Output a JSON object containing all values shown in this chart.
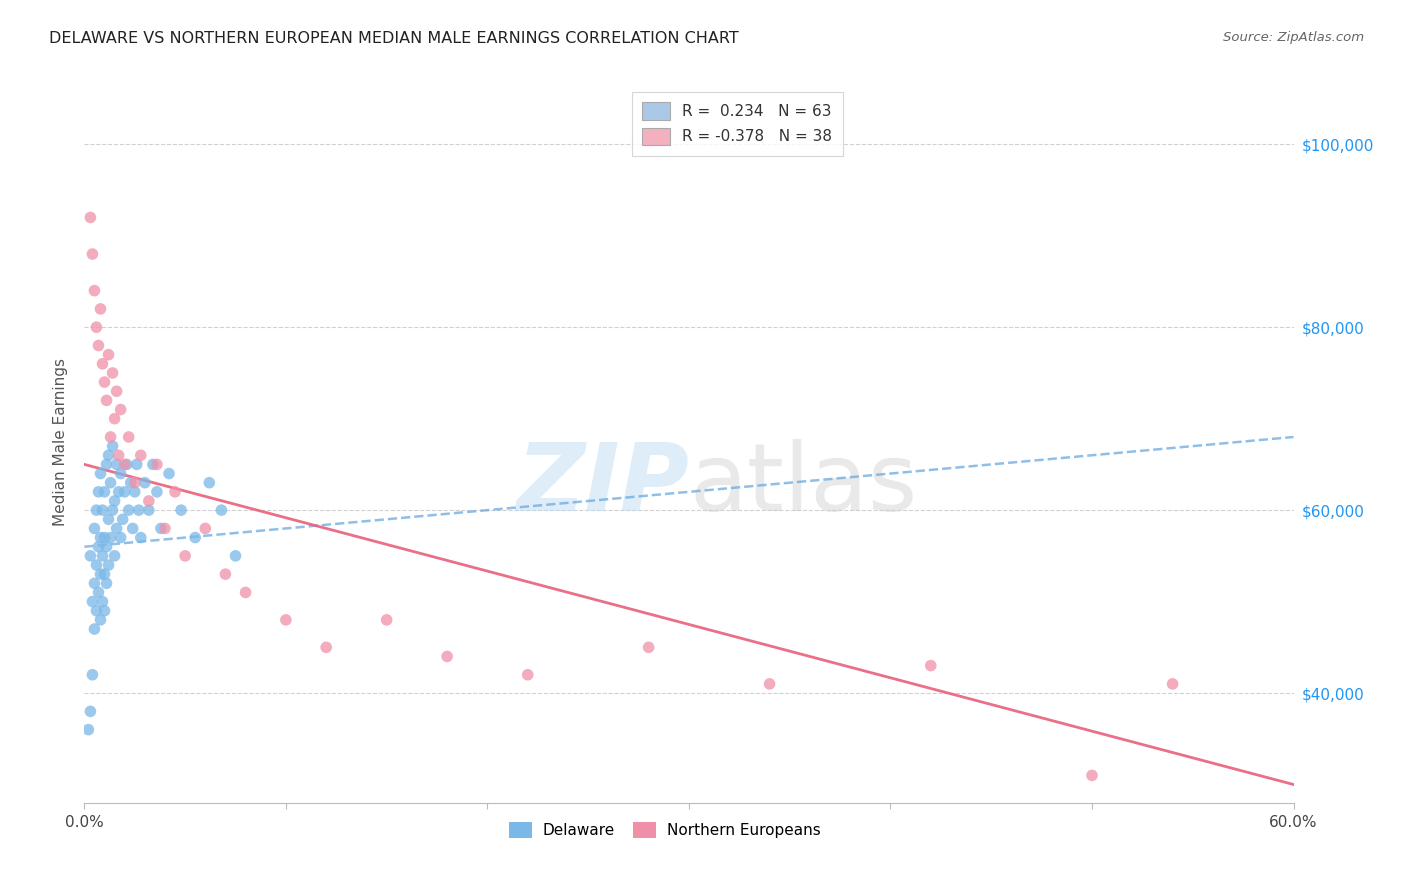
{
  "title": "DELAWARE VS NORTHERN EUROPEAN MEDIAN MALE EARNINGS CORRELATION CHART",
  "source": "Source: ZipAtlas.com",
  "ylabel": "Median Male Earnings",
  "xlim_pct": [
    0.0,
    0.6
  ],
  "ylim": [
    28000,
    107000
  ],
  "ytick_labels": [
    "$40,000",
    "$60,000",
    "$80,000",
    "$100,000"
  ],
  "ytick_values": [
    40000,
    60000,
    80000,
    100000
  ],
  "watermark_zip": "ZIP",
  "watermark_atlas": "atlas",
  "legend_blue_label": "R =  0.234   N = 63",
  "legend_pink_label": "R = -0.378   N = 38",
  "legend_blue_color": "#aac8e8",
  "legend_pink_color": "#f5b0c0",
  "delaware_color": "#7ab8e8",
  "northern_color": "#f090a8",
  "blue_line_color": "#6aaae0",
  "pink_line_color": "#e8607a",
  "blue_legend_label": "Delaware",
  "pink_legend_label": "Northern Europeans",
  "delaware_x": [
    0.002,
    0.003,
    0.003,
    0.004,
    0.004,
    0.005,
    0.005,
    0.005,
    0.006,
    0.006,
    0.006,
    0.007,
    0.007,
    0.007,
    0.008,
    0.008,
    0.008,
    0.008,
    0.009,
    0.009,
    0.009,
    0.01,
    0.01,
    0.01,
    0.01,
    0.011,
    0.011,
    0.011,
    0.012,
    0.012,
    0.012,
    0.013,
    0.013,
    0.014,
    0.014,
    0.015,
    0.015,
    0.016,
    0.016,
    0.017,
    0.018,
    0.018,
    0.019,
    0.02,
    0.021,
    0.022,
    0.023,
    0.024,
    0.025,
    0.026,
    0.027,
    0.028,
    0.03,
    0.032,
    0.034,
    0.036,
    0.038,
    0.042,
    0.048,
    0.055,
    0.062,
    0.068,
    0.075
  ],
  "delaware_y": [
    36000,
    38000,
    55000,
    42000,
    50000,
    47000,
    52000,
    58000,
    49000,
    54000,
    60000,
    51000,
    56000,
    62000,
    48000,
    53000,
    57000,
    64000,
    50000,
    55000,
    60000,
    49000,
    53000,
    57000,
    62000,
    52000,
    56000,
    65000,
    54000,
    59000,
    66000,
    57000,
    63000,
    60000,
    67000,
    55000,
    61000,
    58000,
    65000,
    62000,
    57000,
    64000,
    59000,
    62000,
    65000,
    60000,
    63000,
    58000,
    62000,
    65000,
    60000,
    57000,
    63000,
    60000,
    65000,
    62000,
    58000,
    64000,
    60000,
    57000,
    63000,
    60000,
    55000
  ],
  "northern_x": [
    0.003,
    0.004,
    0.005,
    0.006,
    0.007,
    0.008,
    0.009,
    0.01,
    0.011,
    0.012,
    0.013,
    0.014,
    0.015,
    0.016,
    0.017,
    0.018,
    0.02,
    0.022,
    0.025,
    0.028,
    0.032,
    0.036,
    0.04,
    0.045,
    0.05,
    0.06,
    0.07,
    0.08,
    0.1,
    0.12,
    0.15,
    0.18,
    0.22,
    0.28,
    0.34,
    0.42,
    0.5,
    0.54
  ],
  "northern_y": [
    92000,
    88000,
    84000,
    80000,
    78000,
    82000,
    76000,
    74000,
    72000,
    77000,
    68000,
    75000,
    70000,
    73000,
    66000,
    71000,
    65000,
    68000,
    63000,
    66000,
    61000,
    65000,
    58000,
    62000,
    55000,
    58000,
    53000,
    51000,
    48000,
    45000,
    48000,
    44000,
    42000,
    45000,
    41000,
    43000,
    31000,
    41000
  ],
  "blue_trend_x0": 0.0,
  "blue_trend_x1": 0.6,
  "blue_trend_y0": 56000,
  "blue_trend_y1": 68000,
  "pink_trend_x0": 0.0,
  "pink_trend_x1": 0.6,
  "pink_trend_y0": 65000,
  "pink_trend_y1": 30000
}
